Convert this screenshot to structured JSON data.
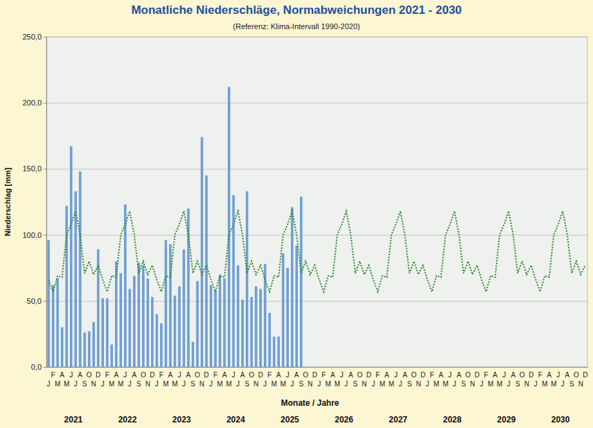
{
  "chart_data": {
    "type": "bar",
    "title": "Monatliche Niederschläge, Normabweichungen 2021 - 2030",
    "subtitle": "(Referenz: Klima-Intervall 1990-2020)",
    "y_label": "Niederschlag [mm]",
    "x_label": "Monate / Jahre",
    "categories": [
      "J",
      "F",
      "M",
      "A",
      "M",
      "J",
      "J",
      "A",
      "S",
      "O",
      "N",
      "D",
      "J",
      "F",
      "M",
      "A",
      "M",
      "J",
      "J",
      "A",
      "S",
      "O",
      "N",
      "D",
      "J",
      "F",
      "M",
      "A",
      "M",
      "J",
      "J",
      "A",
      "S",
      "O",
      "N",
      "D",
      "J",
      "F",
      "M",
      "A",
      "M",
      "J",
      "J",
      "A",
      "S",
      "O",
      "N",
      "D",
      "J",
      "F",
      "M",
      "A",
      "M",
      "J",
      "J",
      "A",
      "S",
      "O",
      "N",
      "D",
      "J",
      "F",
      "M",
      "A",
      "M",
      "J",
      "J",
      "A",
      "S",
      "O",
      "N",
      "D",
      "J",
      "F",
      "M",
      "A",
      "M",
      "J",
      "J",
      "A",
      "S",
      "O",
      "N",
      "D",
      "J",
      "F",
      "M",
      "A",
      "M",
      "J",
      "J",
      "A",
      "S",
      "O",
      "N",
      "D",
      "J",
      "F",
      "M",
      "A",
      "M",
      "J",
      "J",
      "A",
      "S",
      "O",
      "N",
      "D",
      "J",
      "F",
      "M",
      "A",
      "M",
      "J",
      "J",
      "A",
      "S",
      "O",
      "N",
      "D"
    ],
    "x_groups": [
      "2021",
      "2022",
      "2023",
      "2024",
      "2025",
      "2026",
      "2027",
      "2028",
      "2029",
      "2030"
    ],
    "series": [
      {
        "type": "bar",
        "color": "#6e9fd4",
        "values": [
          96,
          62,
          67,
          30,
          122,
          167,
          133,
          148,
          26,
          27,
          34,
          89,
          52,
          52,
          17,
          80,
          71,
          123,
          59,
          69,
          79,
          77,
          67,
          53,
          40,
          33,
          96,
          93,
          54,
          61,
          89,
          120,
          19,
          65,
          174,
          145,
          62,
          58,
          70,
          67,
          212,
          130,
          77,
          51,
          133,
          53,
          61,
          59,
          78,
          41,
          23,
          23,
          86,
          75,
          121,
          92,
          129,
          null,
          null,
          null,
          null,
          null,
          null,
          null,
          null,
          null,
          null,
          null,
          null,
          null,
          null,
          null,
          null,
          null,
          null,
          null,
          null,
          null,
          null,
          null,
          null,
          null,
          null,
          null,
          null,
          null,
          null,
          null,
          null,
          null,
          null,
          null,
          null,
          null,
          null,
          null,
          null,
          null,
          null,
          null,
          null,
          null,
          null,
          null,
          null,
          null,
          null,
          null,
          null,
          null,
          null,
          null,
          null,
          null,
          null,
          null,
          null,
          null,
          null,
          null
        ]
      },
      {
        "type": "line",
        "color": "#2a8a2a",
        "line_style": "dotted",
        "values": [
          66,
          57,
          69,
          68,
          100,
          108,
          118,
          100,
          71,
          80,
          70,
          77,
          66,
          57,
          69,
          68,
          100,
          108,
          118,
          100,
          71,
          80,
          70,
          77,
          66,
          57,
          69,
          68,
          100,
          108,
          118,
          100,
          71,
          80,
          70,
          77,
          66,
          57,
          69,
          68,
          100,
          108,
          118,
          100,
          71,
          80,
          70,
          77,
          66,
          57,
          69,
          68,
          100,
          108,
          118,
          100,
          71,
          80,
          70,
          77,
          66,
          57,
          69,
          68,
          100,
          108,
          118,
          100,
          71,
          80,
          70,
          77,
          66,
          57,
          69,
          68,
          100,
          108,
          118,
          100,
          71,
          80,
          70,
          77,
          66,
          57,
          69,
          68,
          100,
          108,
          118,
          100,
          71,
          80,
          70,
          77,
          66,
          57,
          69,
          68,
          100,
          108,
          118,
          100,
          71,
          80,
          70,
          77,
          66,
          57,
          69,
          68,
          100,
          108,
          118,
          100,
          71,
          80,
          70,
          77
        ]
      }
    ],
    "ylim": [
      0,
      250
    ],
    "yticks": [
      {
        "value": 0,
        "label": "0,0"
      },
      {
        "value": 50,
        "label": "50,0"
      },
      {
        "value": 100,
        "label": "100,0"
      },
      {
        "value": 150,
        "label": "150,0"
      },
      {
        "value": 200,
        "label": "200,0"
      },
      {
        "value": 250,
        "label": "250,0"
      }
    ],
    "grid": true
  }
}
